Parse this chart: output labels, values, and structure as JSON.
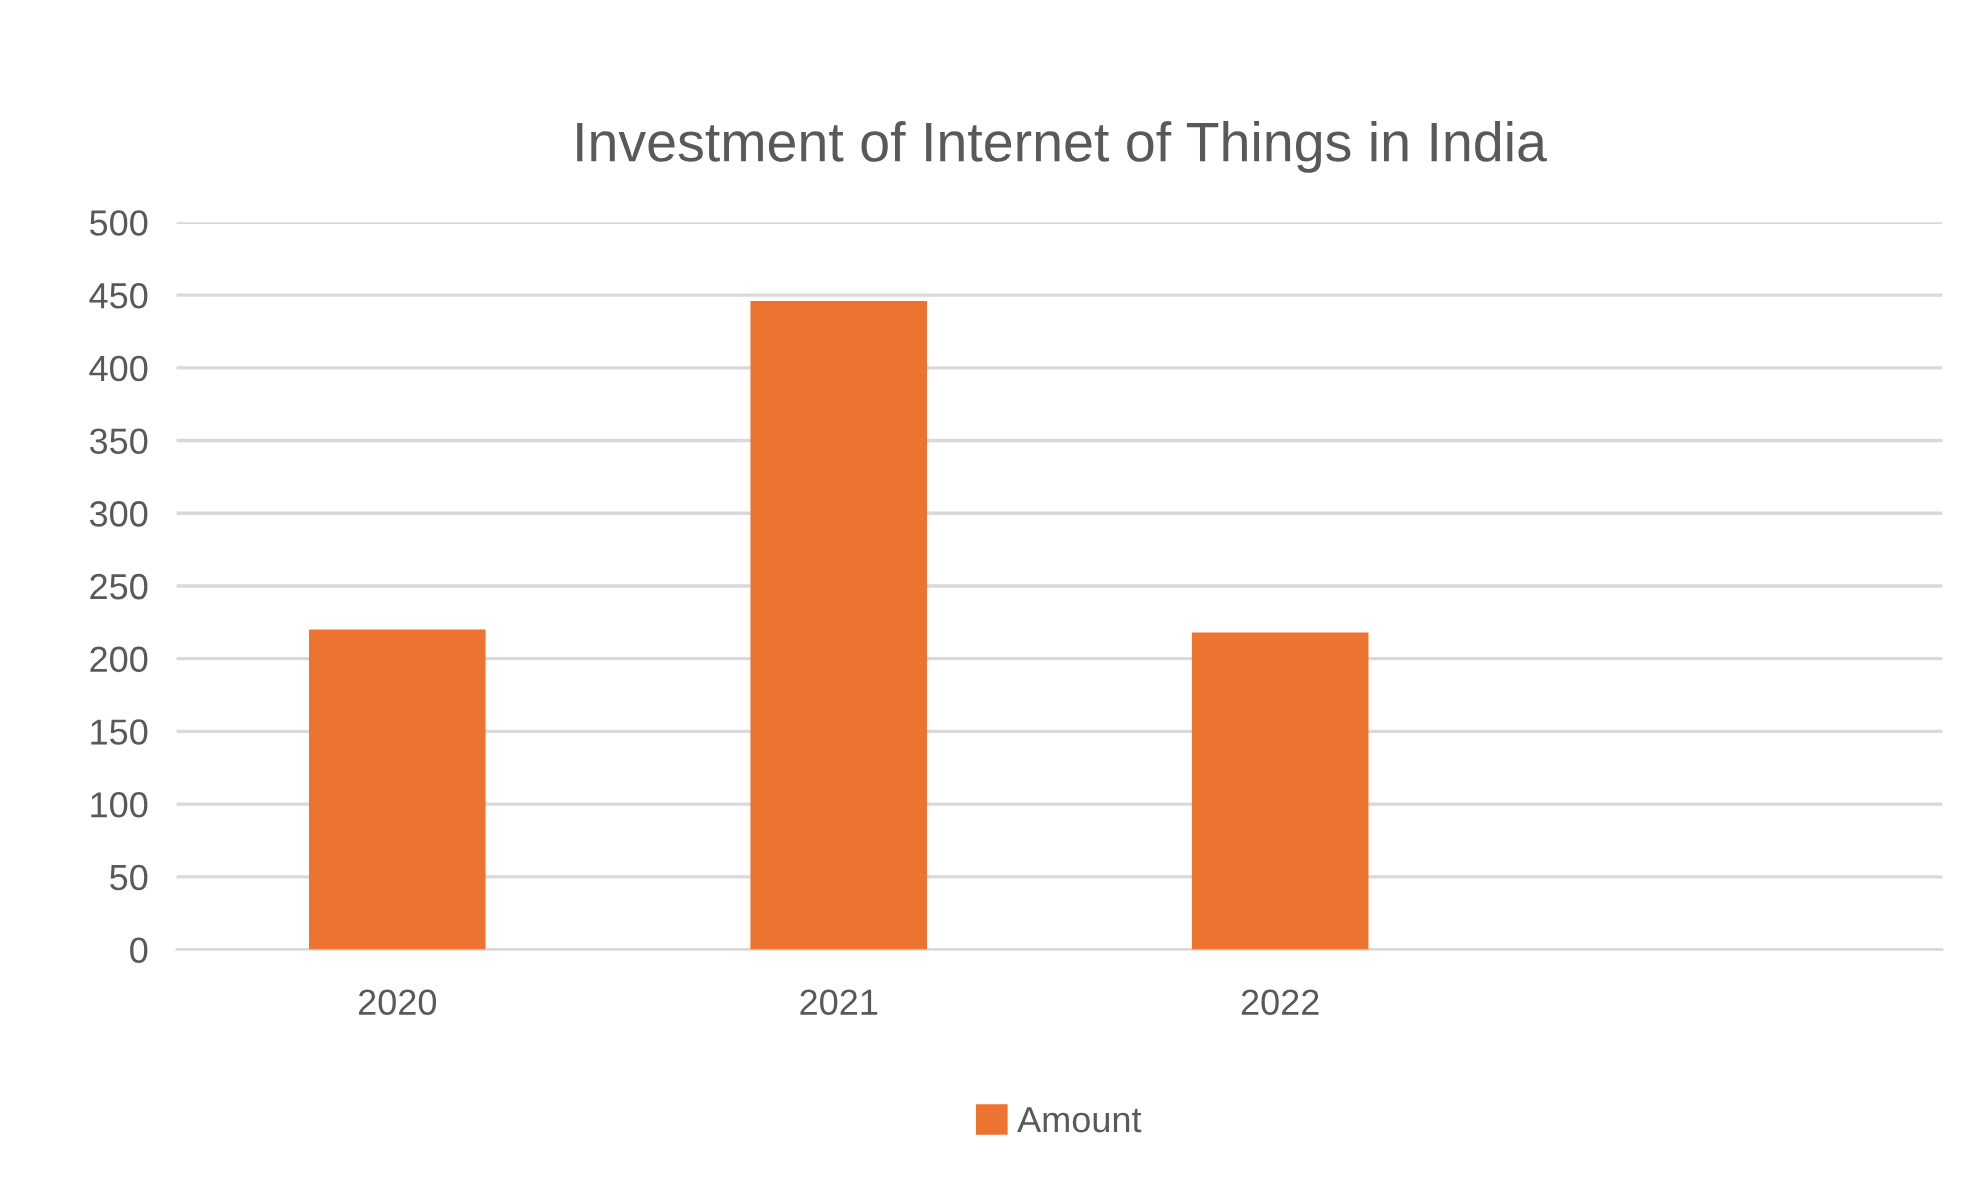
{
  "chart_data": {
    "type": "bar",
    "title": "Investment of Internet of Things in India",
    "categories": [
      "2020",
      "2021",
      "2022",
      null
    ],
    "series": [
      {
        "name": "Amount",
        "color": "#ed7331",
        "values": [
          220,
          446,
          218,
          null
        ]
      }
    ],
    "ylim": [
      0,
      500
    ],
    "yticks": [
      0,
      50,
      100,
      150,
      200,
      250,
      300,
      350,
      400,
      450,
      500
    ],
    "grid": "y",
    "legend": "bottom"
  }
}
